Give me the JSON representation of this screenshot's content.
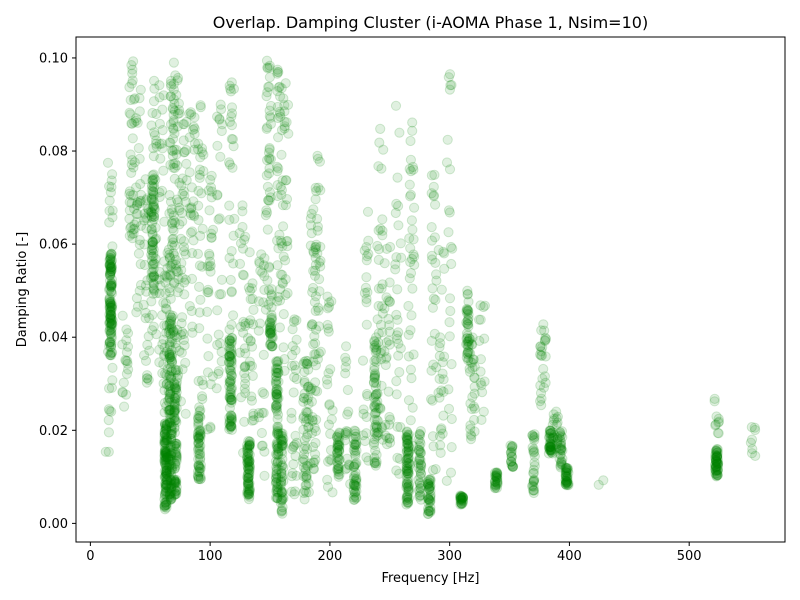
{
  "chart_data": {
    "type": "scatter",
    "title": "Overlap. Damping Cluster (i-AOMA Phase 1, Nsim=10)",
    "xlabel": "Frequency [Hz]",
    "ylabel": "Damping Ratio [-]",
    "xlim": [
      -12,
      580
    ],
    "ylim": [
      -0.004,
      0.1045
    ],
    "x_ticks": [
      0,
      100,
      200,
      300,
      400,
      500
    ],
    "x_tick_labels": [
      "0",
      "100",
      "200",
      "300",
      "400",
      "500"
    ],
    "y_ticks": [
      0.0,
      0.02,
      0.04,
      0.06,
      0.08,
      0.1
    ],
    "y_tick_labels": [
      "0.00",
      "0.02",
      "0.04",
      "0.06",
      "0.08",
      "0.10"
    ],
    "grid": false,
    "marker_color": "#008000",
    "marker_alpha": 0.12,
    "clusters": [
      {
        "f": 17,
        "zmin": 0.036,
        "zmax": 0.058,
        "n": 120,
        "dense": true
      },
      {
        "f": 17,
        "zmin": 0.017,
        "zmax": 0.078,
        "n": 30
      },
      {
        "f": 13,
        "zmin": 0.014,
        "zmax": 0.016,
        "n": 2
      },
      {
        "f": 29,
        "zmin": 0.025,
        "zmax": 0.045,
        "n": 18
      },
      {
        "f": 35,
        "zmin": 0.06,
        "zmax": 0.1,
        "n": 40
      },
      {
        "f": 40,
        "zmin": 0.045,
        "zmax": 0.095,
        "n": 30
      },
      {
        "f": 47,
        "zmin": 0.03,
        "zmax": 0.075,
        "n": 30
      },
      {
        "f": 52,
        "zmin": 0.05,
        "zmax": 0.075,
        "n": 60,
        "dense": true
      },
      {
        "f": 53,
        "zmin": 0.04,
        "zmax": 0.097,
        "n": 40
      },
      {
        "f": 60,
        "zmin": 0.03,
        "zmax": 0.1,
        "n": 30
      },
      {
        "f": 63,
        "zmin": 0.003,
        "zmax": 0.022,
        "n": 120,
        "dense": true
      },
      {
        "f": 64,
        "zmin": 0.01,
        "zmax": 0.06,
        "n": 50
      },
      {
        "f": 67,
        "zmin": 0.005,
        "zmax": 0.045,
        "n": 120,
        "dense": true
      },
      {
        "f": 68,
        "zmin": 0.04,
        "zmax": 0.1,
        "n": 60
      },
      {
        "f": 71,
        "zmin": 0.006,
        "zmax": 0.03,
        "n": 80,
        "dense": true
      },
      {
        "f": 72,
        "zmin": 0.03,
        "zmax": 0.1,
        "n": 50
      },
      {
        "f": 78,
        "zmin": 0.02,
        "zmax": 0.09,
        "n": 40
      },
      {
        "f": 85,
        "zmin": 0.04,
        "zmax": 0.095,
        "n": 30
      },
      {
        "f": 91,
        "zmin": 0.008,
        "zmax": 0.025,
        "n": 60,
        "dense": true
      },
      {
        "f": 92,
        "zmin": 0.025,
        "zmax": 0.09,
        "n": 30
      },
      {
        "f": 100,
        "zmin": 0.02,
        "zmax": 0.075,
        "n": 30
      },
      {
        "f": 108,
        "zmin": 0.025,
        "zmax": 0.09,
        "n": 25
      },
      {
        "f": 117,
        "zmin": 0.02,
        "zmax": 0.04,
        "n": 80,
        "dense": true
      },
      {
        "f": 118,
        "zmin": 0.035,
        "zmax": 0.095,
        "n": 30
      },
      {
        "f": 127,
        "zmin": 0.015,
        "zmax": 0.07,
        "n": 30
      },
      {
        "f": 132,
        "zmin": 0.005,
        "zmax": 0.018,
        "n": 80,
        "dense": true
      },
      {
        "f": 134,
        "zmin": 0.02,
        "zmax": 0.06,
        "n": 25
      },
      {
        "f": 143,
        "zmin": 0.01,
        "zmax": 0.06,
        "n": 25
      },
      {
        "f": 149,
        "zmin": 0.04,
        "zmax": 0.1,
        "n": 50
      },
      {
        "f": 151,
        "zmin": 0.038,
        "zmax": 0.045,
        "n": 30,
        "dense": true
      },
      {
        "f": 156,
        "zmin": 0.005,
        "zmax": 0.035,
        "n": 100,
        "dense": true
      },
      {
        "f": 158,
        "zmin": 0.04,
        "zmax": 0.1,
        "n": 40
      },
      {
        "f": 160,
        "zmin": 0.002,
        "zmax": 0.02,
        "n": 50,
        "dense": true
      },
      {
        "f": 163,
        "zmin": 0.03,
        "zmax": 0.095,
        "n": 30
      },
      {
        "f": 170,
        "zmin": 0.005,
        "zmax": 0.045,
        "n": 30
      },
      {
        "f": 180,
        "zmin": 0.005,
        "zmax": 0.035,
        "n": 60
      },
      {
        "f": 186,
        "zmin": 0.01,
        "zmax": 0.07,
        "n": 50
      },
      {
        "f": 190,
        "zmin": 0.02,
        "zmax": 0.08,
        "n": 30
      },
      {
        "f": 200,
        "zmin": 0.005,
        "zmax": 0.05,
        "n": 25
      },
      {
        "f": 207,
        "zmin": 0.01,
        "zmax": 0.02,
        "n": 40,
        "dense": true
      },
      {
        "f": 215,
        "zmin": 0.005,
        "zmax": 0.04,
        "n": 20
      },
      {
        "f": 221,
        "zmin": 0.005,
        "zmax": 0.02,
        "n": 50,
        "dense": true
      },
      {
        "f": 230,
        "zmin": 0.01,
        "zmax": 0.07,
        "n": 25
      },
      {
        "f": 238,
        "zmin": 0.012,
        "zmax": 0.04,
        "n": 60,
        "dense": true
      },
      {
        "f": 242,
        "zmin": 0.01,
        "zmax": 0.085,
        "n": 40
      },
      {
        "f": 248,
        "zmin": 0.015,
        "zmax": 0.06,
        "n": 30
      },
      {
        "f": 257,
        "zmin": 0.01,
        "zmax": 0.1,
        "n": 30
      },
      {
        "f": 265,
        "zmin": 0.004,
        "zmax": 0.02,
        "n": 80,
        "dense": true
      },
      {
        "f": 268,
        "zmin": 0.01,
        "zmax": 0.09,
        "n": 40
      },
      {
        "f": 275,
        "zmin": 0.005,
        "zmax": 0.02,
        "n": 40,
        "dense": true
      },
      {
        "f": 283,
        "zmin": 0.002,
        "zmax": 0.01,
        "n": 40,
        "dense": true
      },
      {
        "f": 287,
        "zmin": 0.01,
        "zmax": 0.075,
        "n": 30
      },
      {
        "f": 293,
        "zmin": 0.015,
        "zmax": 0.06,
        "n": 25
      },
      {
        "f": 300,
        "zmin": 0.005,
        "zmax": 0.1,
        "n": 25
      },
      {
        "f": 310,
        "zmin": 0.004,
        "zmax": 0.006,
        "n": 30,
        "dense": true
      },
      {
        "f": 315,
        "zmin": 0.035,
        "zmax": 0.05,
        "n": 40,
        "dense": true
      },
      {
        "f": 319,
        "zmin": 0.018,
        "zmax": 0.04,
        "n": 30
      },
      {
        "f": 327,
        "zmin": 0.02,
        "zmax": 0.06,
        "n": 15
      },
      {
        "f": 339,
        "zmin": 0.007,
        "zmax": 0.011,
        "n": 30,
        "dense": true
      },
      {
        "f": 352,
        "zmin": 0.012,
        "zmax": 0.017,
        "n": 20,
        "dense": true
      },
      {
        "f": 370,
        "zmin": 0.006,
        "zmax": 0.02,
        "n": 30,
        "dense": true
      },
      {
        "f": 378,
        "zmin": 0.025,
        "zmax": 0.043,
        "n": 25
      },
      {
        "f": 384,
        "zmin": 0.015,
        "zmax": 0.02,
        "n": 40,
        "dense": true
      },
      {
        "f": 388,
        "zmin": 0.015,
        "zmax": 0.025,
        "n": 20
      },
      {
        "f": 393,
        "zmin": 0.012,
        "zmax": 0.02,
        "n": 30,
        "dense": true
      },
      {
        "f": 398,
        "zmin": 0.008,
        "zmax": 0.012,
        "n": 40,
        "dense": true
      },
      {
        "f": 426,
        "zmin": 0.008,
        "zmax": 0.011,
        "n": 2
      },
      {
        "f": 523,
        "zmin": 0.01,
        "zmax": 0.016,
        "n": 60,
        "dense": true
      },
      {
        "f": 523,
        "zmin": 0.016,
        "zmax": 0.027,
        "n": 10
      },
      {
        "f": 553,
        "zmin": 0.014,
        "zmax": 0.021,
        "n": 8
      }
    ]
  }
}
